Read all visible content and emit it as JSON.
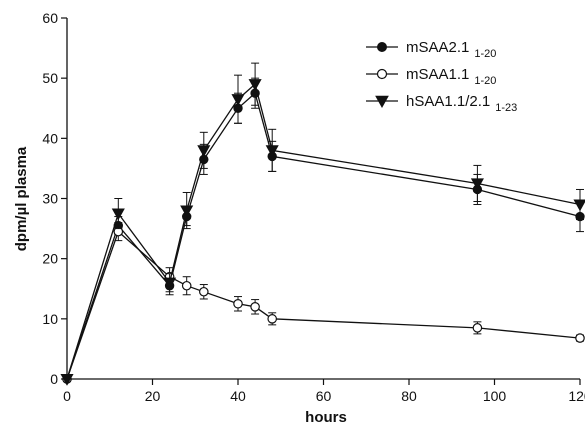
{
  "chart_data": {
    "type": "line",
    "title": "",
    "xlabel": "hours",
    "ylabel": "dpm/µl plasma",
    "xlim": [
      0,
      120
    ],
    "ylim": [
      0,
      60
    ],
    "xticks": [
      0,
      20,
      40,
      60,
      80,
      100,
      120
    ],
    "yticks": [
      0,
      10,
      20,
      30,
      40,
      50,
      60
    ],
    "grid": false,
    "legend_position": "top-right",
    "series": [
      {
        "name": "mSAA2.1",
        "subscript": "1-20",
        "marker": "filled-circle",
        "color": "#111111",
        "x": [
          0,
          12,
          24,
          28,
          32,
          40,
          44,
          48,
          96,
          120
        ],
        "y": [
          0,
          25.5,
          15.5,
          27,
          36.5,
          45,
          47.5,
          37,
          31.5,
          27
        ],
        "err": [
          0,
          1.5,
          1.5,
          1.5,
          2.5,
          2.5,
          2.5,
          2.5,
          2.5,
          2.5
        ]
      },
      {
        "name": "mSAA1.1",
        "subscript": "1-20",
        "marker": "open-circle",
        "color": "#111111",
        "x": [
          0,
          12,
          24,
          28,
          32,
          40,
          44,
          48,
          96,
          120
        ],
        "y": [
          0,
          24.5,
          17,
          15.5,
          14.5,
          12.5,
          12,
          10,
          8.5,
          6.8
        ],
        "err": [
          0,
          1.5,
          1.5,
          1.5,
          1.2,
          1.2,
          1.2,
          1.0,
          1.0,
          0.5
        ]
      },
      {
        "name": "hSAA1.1/2.1",
        "subscript": "1-23",
        "marker": "filled-triangle-down",
        "color": "#111111",
        "x": [
          0,
          12,
          24,
          28,
          32,
          40,
          44,
          48,
          96,
          120
        ],
        "y": [
          0,
          27.5,
          16,
          28,
          38,
          46.5,
          49,
          38,
          32.5,
          29
        ],
        "err": [
          0,
          2.5,
          1.5,
          3.0,
          3.0,
          4.0,
          3.5,
          3.5,
          3.0,
          2.5
        ]
      }
    ]
  }
}
